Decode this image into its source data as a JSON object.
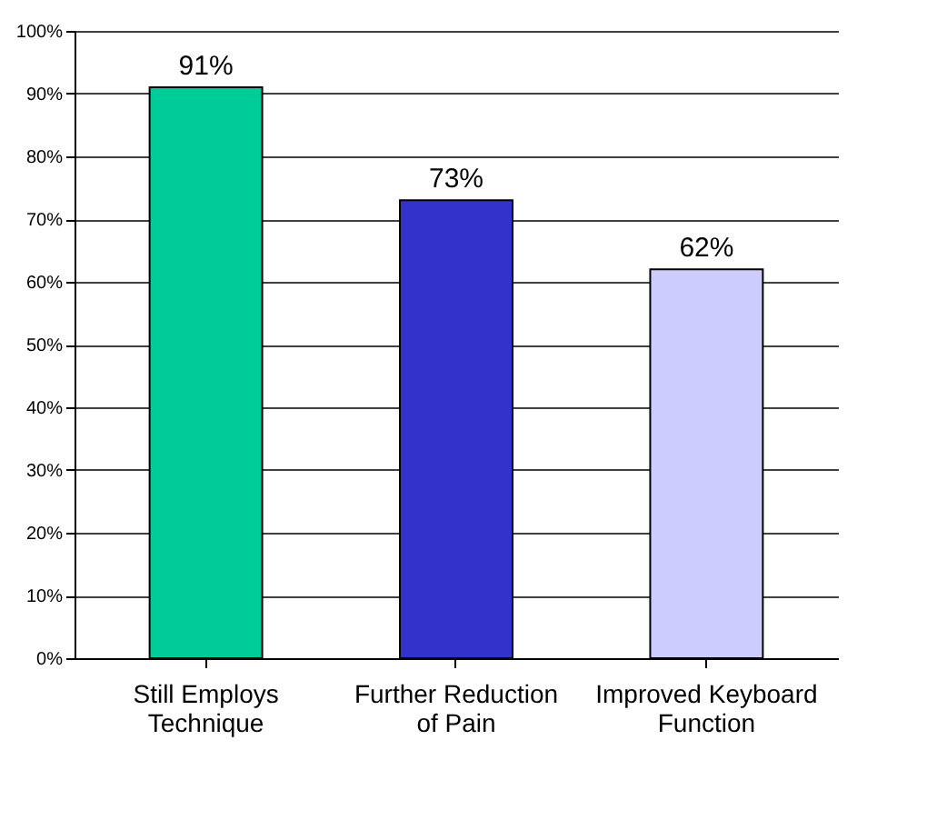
{
  "chart_data": {
    "type": "bar",
    "categories": [
      "Still Employs Technique",
      "Further Reduction of Pain",
      "Improved Keyboard Function"
    ],
    "values": [
      91,
      73,
      62
    ],
    "colors": [
      "#00cc99",
      "#3333cc",
      "#ccccff"
    ],
    "value_labels": [
      "91%",
      "73%",
      "62%"
    ],
    "ylim": [
      0,
      100
    ],
    "yticks": [
      {
        "value": 0,
        "label": "0%"
      },
      {
        "value": 10,
        "label": "10%"
      },
      {
        "value": 20,
        "label": "20%"
      },
      {
        "value": 30,
        "label": "30%"
      },
      {
        "value": 40,
        "label": "40%"
      },
      {
        "value": 50,
        "label": "50%"
      },
      {
        "value": 60,
        "label": "60%"
      },
      {
        "value": 70,
        "label": "70%"
      },
      {
        "value": 80,
        "label": "80%"
      },
      {
        "value": 90,
        "label": "90%"
      },
      {
        "value": 100,
        "label": "100%"
      }
    ],
    "grid": "y"
  }
}
